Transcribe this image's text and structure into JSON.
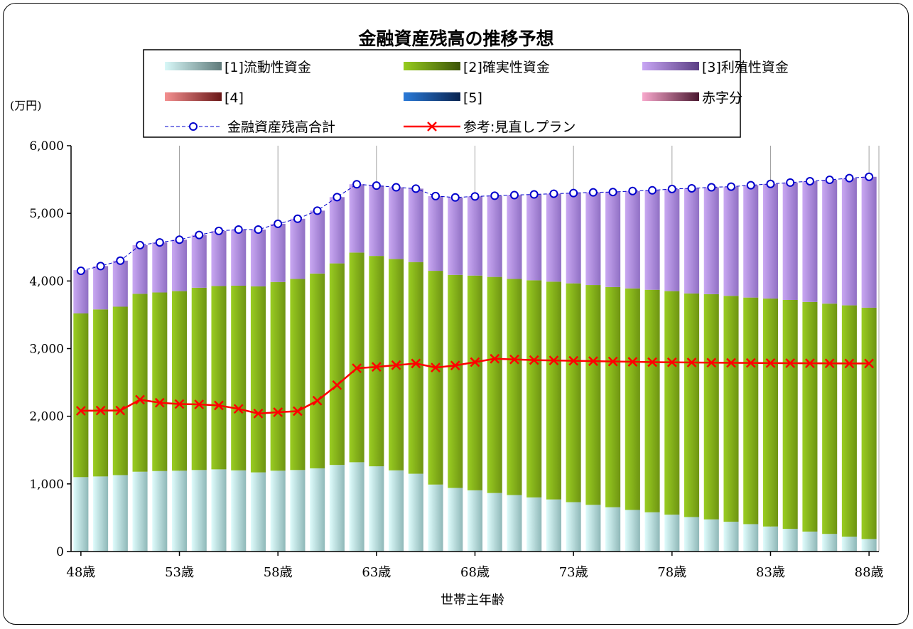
{
  "chart_data": {
    "type": "bar",
    "title": "金融資産残高の推移予想",
    "ylabel": "(万円)",
    "xlabel": "世帯主年齢",
    "ylim": [
      0,
      6000
    ],
    "yticks": [
      "0",
      "1,000",
      "2,000",
      "3,000",
      "4,000",
      "5,000",
      "6,000"
    ],
    "xticks": [
      "48歳",
      "53歳",
      "58歳",
      "63歳",
      "68歳",
      "73歳",
      "78歳",
      "83歳",
      "88歳"
    ],
    "categories": [
      48,
      49,
      50,
      51,
      52,
      53,
      54,
      55,
      56,
      57,
      58,
      59,
      60,
      61,
      62,
      63,
      64,
      65,
      66,
      67,
      68,
      69,
      70,
      71,
      72,
      73,
      74,
      75,
      76,
      77,
      78,
      79,
      80,
      81,
      82,
      83,
      84,
      85,
      86,
      87,
      88
    ],
    "grid": "vertical every 5 years",
    "legend_position": "top",
    "legend": {
      "s1": "[1]流動性資金",
      "s2": "[2]確実性資金",
      "s3": "[3]利殖性資金",
      "s4": "[4]",
      "s5": "[5]",
      "s6": "赤字分",
      "total": "金融資産残高合計",
      "plan": "参考:見直しプラン"
    },
    "colors": {
      "s1": "#cdf5f5",
      "s2": "#8cc21c",
      "s3": "#b594e6",
      "s4": "#f08a8a",
      "s5": "#1e6fc8",
      "s6": "#f5a0c8",
      "total": "#0000cc",
      "plan": "#ff0000",
      "grid": "#a0a0a0"
    },
    "series": [
      {
        "key": "s1",
        "name": "[1]流動性資金",
        "values": [
          1100,
          1110,
          1130,
          1180,
          1190,
          1195,
          1205,
          1215,
          1200,
          1170,
          1195,
          1205,
          1230,
          1280,
          1320,
          1260,
          1200,
          1150,
          990,
          940,
          905,
          865,
          835,
          800,
          770,
          730,
          690,
          655,
          615,
          580,
          545,
          510,
          475,
          440,
          405,
          370,
          335,
          295,
          260,
          220,
          185
        ]
      },
      {
        "key": "s2",
        "name": "[2]確実性資金",
        "values": [
          2420,
          2470,
          2490,
          2630,
          2640,
          2655,
          2695,
          2710,
          2730,
          2750,
          2790,
          2825,
          2880,
          2980,
          3100,
          3110,
          3125,
          3130,
          3160,
          3150,
          3175,
          3195,
          3195,
          3210,
          3220,
          3235,
          3250,
          3255,
          3275,
          3290,
          3305,
          3305,
          3330,
          3340,
          3350,
          3370,
          3385,
          3395,
          3405,
          3420,
          3420
        ]
      },
      {
        "key": "s3",
        "name": "[3]利殖性資金",
        "values": [
          640,
          640,
          680,
          720,
          740,
          760,
          780,
          815,
          830,
          840,
          860,
          890,
          930,
          980,
          1010,
          1040,
          1060,
          1085,
          1105,
          1145,
          1170,
          1200,
          1240,
          1270,
          1300,
          1335,
          1370,
          1405,
          1440,
          1470,
          1510,
          1555,
          1580,
          1615,
          1660,
          1695,
          1735,
          1785,
          1830,
          1880,
          1935
        ]
      },
      {
        "key": "total",
        "name": "金融資産残高合計",
        "values": [
          4150,
          4220,
          4300,
          4530,
          4570,
          4610,
          4680,
          4740,
          4760,
          4760,
          4845,
          4920,
          5040,
          5240,
          5430,
          5410,
          5385,
          5365,
          5255,
          5235,
          5250,
          5260,
          5270,
          5280,
          5290,
          5300,
          5310,
          5315,
          5330,
          5340,
          5360,
          5370,
          5385,
          5395,
          5415,
          5435,
          5455,
          5475,
          5495,
          5520,
          5540
        ]
      },
      {
        "key": "plan",
        "name": "参考:見直しプラン",
        "values": [
          2080,
          2085,
          2085,
          2245,
          2200,
          2180,
          2175,
          2160,
          2110,
          2040,
          2060,
          2075,
          2230,
          2460,
          2710,
          2730,
          2755,
          2780,
          2720,
          2750,
          2800,
          2850,
          2840,
          2830,
          2825,
          2820,
          2815,
          2810,
          2805,
          2800,
          2798,
          2795,
          2792,
          2790,
          2788,
          2786,
          2785,
          2783,
          2782,
          2780,
          2780
        ]
      }
    ]
  }
}
